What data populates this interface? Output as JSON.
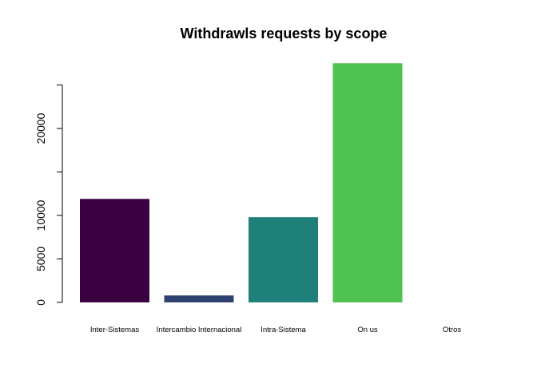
{
  "chart_data": {
    "type": "bar",
    "title": "Withdrawls requests by scope",
    "xlabel": "",
    "ylabel": "",
    "categories": [
      "Inter-Sistemas",
      "Intercambio Internacional",
      "Intra-Sistema",
      "On us",
      "Otros"
    ],
    "values": [
      11900,
      800,
      9800,
      27500,
      0
    ],
    "colors": [
      "#3b0040",
      "#2f4270",
      "#1f807a",
      "#50c250",
      "#ffffff"
    ],
    "ylim": [
      0,
      25000
    ],
    "y_ticks": [
      0,
      5000,
      10000,
      15000,
      20000,
      25000
    ],
    "y_tick_labels": [
      "0",
      "5000",
      "10000",
      "",
      "20000",
      ""
    ],
    "grid": false,
    "legend": "none"
  }
}
